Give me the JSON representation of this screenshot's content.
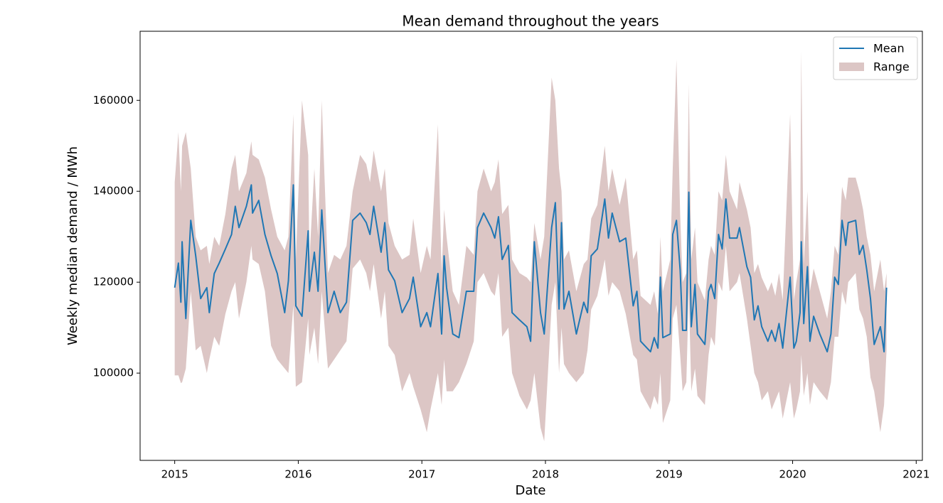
{
  "chart_data": {
    "type": "line",
    "title": "Mean demand throughout the years",
    "x_label": "Date",
    "y_label": "Weekly median demand / MWh",
    "xlim": [
      2014.72,
      2021.05
    ],
    "ylim": [
      80800,
      175200
    ],
    "xticks": [
      2015,
      2016,
      2017,
      2018,
      2019,
      2020,
      2021
    ],
    "yticks": [
      100000,
      120000,
      140000,
      160000
    ],
    "legend": "upper right",
    "x": [
      2015.0,
      2015.03,
      2015.05,
      2015.06,
      2015.09,
      2015.13,
      2015.17,
      2015.21,
      2015.26,
      2015.28,
      2015.32,
      2015.36,
      2015.41,
      2015.46,
      2015.49,
      2015.52,
      2015.58,
      2015.62,
      2015.63,
      2015.68,
      2015.73,
      2015.78,
      2015.83,
      2015.89,
      2015.92,
      2015.96,
      2015.98,
      2016.03,
      2016.08,
      2016.09,
      2016.13,
      2016.16,
      2016.19,
      2016.24,
      2016.29,
      2016.34,
      2016.39,
      2016.44,
      2016.5,
      2016.55,
      2016.58,
      2016.61,
      2016.67,
      2016.7,
      2016.73,
      2016.78,
      2016.84,
      2016.9,
      2016.93,
      2016.99,
      2017.04,
      2017.07,
      2017.13,
      2017.16,
      2017.18,
      2017.2,
      2017.25,
      2017.3,
      2017.36,
      2017.42,
      2017.45,
      2017.5,
      2017.56,
      2017.59,
      2017.62,
      2017.65,
      2017.7,
      2017.73,
      2017.79,
      2017.85,
      2017.88,
      2017.91,
      2017.96,
      2017.99,
      2018.05,
      2018.08,
      2018.11,
      2018.13,
      2018.15,
      2018.19,
      2018.25,
      2018.31,
      2018.34,
      2018.37,
      2018.42,
      2018.48,
      2018.51,
      2018.54,
      2018.6,
      2018.65,
      2018.71,
      2018.74,
      2018.77,
      2018.85,
      2018.88,
      2018.91,
      2018.93,
      2018.95,
      2019.01,
      2019.03,
      2019.06,
      2019.09,
      2019.11,
      2019.14,
      2019.16,
      2019.18,
      2019.21,
      2019.23,
      2019.29,
      2019.32,
      2019.34,
      2019.37,
      2019.4,
      2019.43,
      2019.46,
      2019.49,
      2019.55,
      2019.57,
      2019.63,
      2019.66,
      2019.69,
      2019.72,
      2019.75,
      2019.8,
      2019.83,
      2019.86,
      2019.89,
      2019.92,
      2019.98,
      2020.01,
      2020.03,
      2020.06,
      2020.07,
      2020.09,
      2020.12,
      2020.14,
      2020.17,
      2020.22,
      2020.28,
      2020.31,
      2020.34,
      2020.37,
      2020.4,
      2020.43,
      2020.45,
      2020.51,
      2020.54,
      2020.57,
      2020.6,
      2020.63,
      2020.66,
      2020.71,
      2020.74,
      2020.76
    ],
    "series": [
      {
        "name": "Mean",
        "color": "#1f77b4",
        "values": [
          118800,
          124200,
          115600,
          128900,
          112000,
          133600,
          125800,
          116400,
          118800,
          113300,
          121900,
          124200,
          127300,
          130500,
          136700,
          132000,
          136700,
          141400,
          135200,
          138000,
          130500,
          125800,
          121900,
          113300,
          120300,
          141400,
          114800,
          112500,
          131300,
          118000,
          126600,
          118000,
          135900,
          113300,
          118000,
          113300,
          115600,
          133600,
          135200,
          133100,
          130500,
          136700,
          126600,
          133100,
          122700,
          120300,
          113300,
          116400,
          121100,
          110200,
          113300,
          110200,
          121900,
          108600,
          125800,
          118800,
          108600,
          107800,
          118000,
          118000,
          132000,
          135200,
          132000,
          129700,
          134400,
          125000,
          128100,
          113300,
          111700,
          110200,
          107000,
          128900,
          113300,
          108600,
          132000,
          137500,
          114100,
          133100,
          114100,
          118000,
          108600,
          115600,
          113300,
          125800,
          127300,
          138300,
          129700,
          135200,
          128900,
          129700,
          114800,
          118000,
          107000,
          104700,
          107800,
          105500,
          121100,
          107800,
          108600,
          130500,
          133600,
          122700,
          109400,
          109400,
          139800,
          110200,
          119500,
          108600,
          106300,
          118000,
          119500,
          116400,
          130500,
          127300,
          138300,
          129700,
          129700,
          132000,
          123400,
          121100,
          111700,
          114800,
          110200,
          107000,
          109400,
          107000,
          110900,
          105500,
          121100,
          105500,
          107000,
          113300,
          128900,
          110900,
          123400,
          107000,
          112500,
          108600,
          104700,
          108600,
          121100,
          119500,
          133600,
          128100,
          133100,
          133600,
          126100,
          128100,
          122700,
          116400,
          106300,
          110200,
          104700,
          118800
        ]
      }
    ],
    "range": {
      "name": "Range",
      "color": "#dcc6c5",
      "lower": [
        99500,
        99500,
        97800,
        98000,
        101000,
        118000,
        105000,
        106000,
        100000,
        103000,
        108000,
        106000,
        113000,
        118000,
        120000,
        112000,
        120000,
        128000,
        125000,
        124000,
        118000,
        106000,
        103000,
        101000,
        100000,
        115000,
        97000,
        98000,
        112000,
        104000,
        110000,
        102000,
        118000,
        101000,
        103000,
        105000,
        107000,
        123000,
        125000,
        122000,
        118000,
        124000,
        112000,
        118000,
        106000,
        104000,
        96000,
        100000,
        97000,
        92000,
        87000,
        92000,
        100000,
        93000,
        103000,
        96000,
        96000,
        98000,
        102000,
        107000,
        120000,
        122000,
        118000,
        117000,
        122000,
        108000,
        110000,
        100000,
        95000,
        92000,
        94000,
        100000,
        88000,
        85000,
        115000,
        120000,
        100000,
        110000,
        102000,
        100000,
        98000,
        100000,
        105000,
        114000,
        117000,
        125000,
        117000,
        120000,
        118000,
        113000,
        104000,
        103000,
        96000,
        92000,
        95000,
        93000,
        100000,
        89000,
        94000,
        112000,
        115000,
        104000,
        96000,
        98000,
        118000,
        96000,
        101000,
        95000,
        93000,
        104000,
        108000,
        106000,
        120000,
        118000,
        128000,
        118000,
        120000,
        122000,
        112000,
        106000,
        100000,
        98000,
        94000,
        96000,
        92000,
        94000,
        96000,
        90000,
        98000,
        90000,
        92000,
        96000,
        104000,
        95000,
        100000,
        93000,
        98000,
        96000,
        94000,
        98000,
        108000,
        108000,
        118000,
        115000,
        120000,
        122000,
        114000,
        112000,
        108000,
        99000,
        96000,
        87000,
        93000,
        105000
      ],
      "upper": [
        142000,
        153000,
        140000,
        150000,
        153000,
        145000,
        130000,
        127000,
        128000,
        124000,
        130000,
        128000,
        135000,
        145000,
        148000,
        140000,
        144000,
        151000,
        148000,
        147000,
        143000,
        136000,
        130000,
        127000,
        130000,
        157000,
        125000,
        160000,
        148000,
        125000,
        145000,
        130000,
        160000,
        122000,
        126000,
        125000,
        128000,
        140000,
        148000,
        146000,
        142000,
        149000,
        140000,
        145000,
        133000,
        128000,
        125000,
        126000,
        134000,
        122000,
        128000,
        125000,
        154700,
        122000,
        136000,
        130000,
        118000,
        115000,
        128000,
        126000,
        140000,
        145000,
        140000,
        142000,
        147000,
        135000,
        137000,
        125000,
        122000,
        121000,
        120000,
        133000,
        125000,
        130000,
        165000,
        160000,
        145000,
        140000,
        125000,
        127000,
        118000,
        124000,
        125000,
        134000,
        137000,
        150000,
        140000,
        145000,
        137000,
        143000,
        125000,
        127000,
        117000,
        115000,
        118000,
        113000,
        130000,
        118000,
        125000,
        145000,
        169000,
        135000,
        120000,
        122000,
        163600,
        125000,
        132000,
        120000,
        116000,
        125000,
        128000,
        126000,
        140000,
        138000,
        148000,
        140000,
        136000,
        142000,
        136000,
        132000,
        122000,
        124000,
        121000,
        118000,
        120000,
        117000,
        122000,
        116000,
        157000,
        116000,
        120000,
        125000,
        170800,
        124000,
        140000,
        118000,
        123000,
        118000,
        112000,
        118000,
        128000,
        126000,
        141000,
        138000,
        143000,
        143000,
        140000,
        136000,
        130000,
        126000,
        118000,
        125000,
        118000,
        122000
      ]
    }
  }
}
